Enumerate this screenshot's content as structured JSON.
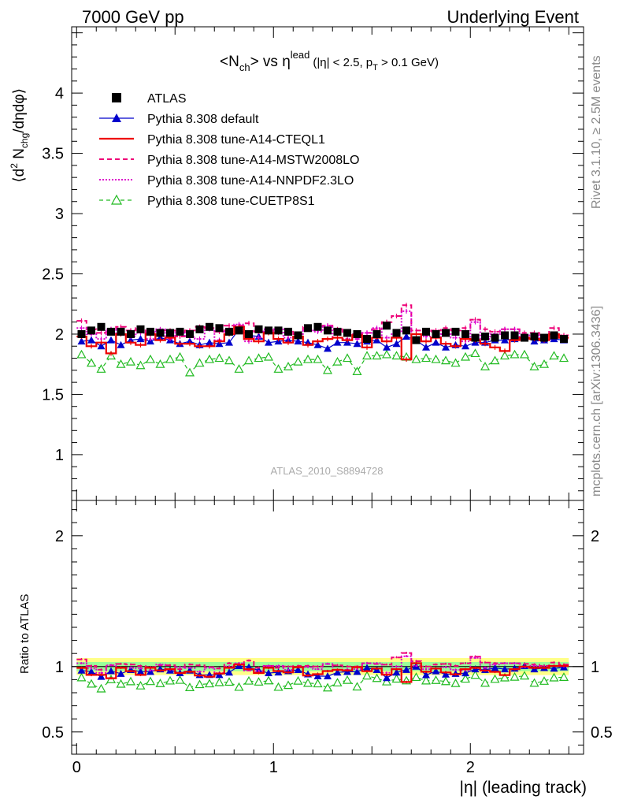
{
  "header": {
    "left": "7000 GeV pp",
    "right": "Underlying Event"
  },
  "side_labels": {
    "rivet": "Rivet 3.1.10, ≥ 2.5M events",
    "mcplots": "mcplots.cern.ch [arXiv:1306.3436]"
  },
  "watermark": "ATLAS_2010_S8894728",
  "colors": {
    "atlas": "#000000",
    "default": "#0000cc",
    "cteql1": "#ee0000",
    "mstw": "#ee0077",
    "nnpdf": "#dd00cc",
    "cuetp": "#22bb22",
    "band_yellow": "#ffff88",
    "band_green": "#99ff99"
  },
  "chart_data": [
    {
      "type": "scatter",
      "panel": "main",
      "title": "<N_ch> vs η^lead (|η| < 2.5, p_T > 0.1 GeV)",
      "title_parts": {
        "lhs_open": "<N",
        "lhs_sub": "ch",
        "lhs_close": "> vs η",
        "lhs_sup": "lead",
        "cut_open": "(|η| < 2.5, p",
        "cut_sub": "T",
        "cut_close": " > 0.1 GeV)"
      },
      "ylabel": "⟨d² N_chg/dηdφ⟩",
      "ylabel_parts": {
        "open": "⟨d",
        "sup": "2",
        "mid": " N",
        "sub": "chg",
        "close": "/dηdφ⟩"
      },
      "xlabel": "|η| (leading track)",
      "xlim": [
        -0.025,
        2.575
      ],
      "ylim": [
        0.62,
        4.55
      ],
      "yticks": [
        1,
        1.5,
        2,
        2.5,
        3,
        3.5,
        4
      ],
      "ytick_labels": [
        "1",
        "1.5",
        "2",
        "2.5",
        "3",
        "3.5",
        "4"
      ],
      "legend_position": "top-left",
      "legend": [
        "ATLAS",
        "Pythia 8.308 default",
        "Pythia 8.308 tune-A14-CTEQL1",
        "Pythia 8.308 tune-A14-MSTW2008LO",
        "Pythia 8.308 tune-A14-NNPDF2.3LO",
        "Pythia 8.308 tune-CUETP8S1"
      ],
      "x": [
        0.025,
        0.075,
        0.125,
        0.175,
        0.225,
        0.275,
        0.325,
        0.375,
        0.425,
        0.475,
        0.525,
        0.575,
        0.625,
        0.675,
        0.725,
        0.775,
        0.825,
        0.875,
        0.925,
        0.975,
        1.025,
        1.075,
        1.125,
        1.175,
        1.225,
        1.275,
        1.325,
        1.375,
        1.425,
        1.475,
        1.525,
        1.575,
        1.625,
        1.675,
        1.725,
        1.775,
        1.825,
        1.875,
        1.925,
        1.975,
        2.025,
        2.075,
        2.125,
        2.175,
        2.225,
        2.275,
        2.325,
        2.375,
        2.425,
        2.475
      ],
      "series": [
        {
          "name": "ATLAS",
          "style": "square",
          "values": [
            2.0,
            2.03,
            2.06,
            2.02,
            2.02,
            2.0,
            2.04,
            2.02,
            2.01,
            2.01,
            2.02,
            2.0,
            2.04,
            2.06,
            2.05,
            2.02,
            2.03,
            2.0,
            2.04,
            2.03,
            2.03,
            2.02,
            1.99,
            2.05,
            2.06,
            2.03,
            2.02,
            2.01,
            2.0,
            1.96,
            2.0,
            2.07,
            2.01,
            2.03,
            1.95,
            2.02,
            2.0,
            2.01,
            2.02,
            2.0,
            1.97,
            1.98,
            1.97,
            1.99,
            1.99,
            1.97,
            1.98,
            1.97,
            1.99,
            1.96
          ]
        },
        {
          "name": "Pythia 8.308 default",
          "style": "line-triangle",
          "values": [
            1.94,
            1.95,
            1.9,
            1.95,
            1.91,
            1.95,
            1.96,
            1.94,
            1.97,
            1.95,
            1.92,
            1.94,
            1.91,
            1.93,
            1.92,
            1.93,
            2.04,
            1.99,
            1.98,
            1.93,
            1.94,
            1.95,
            1.94,
            1.93,
            1.91,
            1.88,
            1.93,
            1.93,
            1.92,
            1.94,
            1.95,
            1.89,
            1.92,
            1.98,
            1.95,
            1.89,
            1.93,
            1.89,
            1.91,
            1.9,
            1.93,
            1.93,
            1.95,
            1.95,
            1.96,
            1.98,
            1.94,
            1.95,
            1.96,
            1.95
          ]
        },
        {
          "name": "Pythia 8.308 tune-A14-CTEQL1",
          "style": "solid",
          "values": [
            1.98,
            1.9,
            1.93,
            1.84,
            2.0,
            1.93,
            1.91,
            2.0,
            1.95,
            1.97,
            1.92,
            1.92,
            1.9,
            1.9,
            1.94,
            2.0,
            2.06,
            1.96,
            1.94,
            2.01,
            1.96,
            1.93,
            1.98,
            1.91,
            1.94,
            1.96,
            1.97,
            1.95,
            1.99,
            1.89,
            1.97,
            1.94,
            1.97,
            1.79,
            2.0,
            1.94,
            1.97,
            1.92,
            1.9,
            1.96,
            1.95,
            1.92,
            1.89,
            1.86,
            1.95,
            1.97,
            1.96,
            1.95,
            2.0,
            1.97
          ]
        },
        {
          "name": "Pythia 8.308 tune-A14-MSTW2008LO",
          "style": "dashed",
          "values": [
            2.11,
            2.04,
            2.01,
            2.04,
            2.06,
            2.03,
            2.05,
            2.01,
            2.03,
            2.03,
            1.98,
            2.03,
            2.06,
            2.05,
            2.02,
            2.07,
            2.07,
            2.09,
            2.02,
            2.04,
            2.01,
            2.02,
            2.0,
            2.06,
            2.06,
            2.07,
            2.04,
            2.01,
            2.0,
            2.01,
            2.04,
            2.1,
            2.15,
            2.24,
            2.03,
            2.02,
            2.03,
            2.05,
            2.03,
            2.05,
            2.12,
            2.04,
            2.02,
            2.04,
            2.04,
            2.01,
            2.01,
            1.98,
            2.05,
            1.99
          ]
        },
        {
          "name": "Pythia 8.308 tune-A14-NNPDF2.3LO",
          "style": "dotted",
          "values": [
            2.05,
            2.0,
            1.96,
            2.04,
            2.0,
            1.98,
            2.01,
            1.96,
            2.04,
            1.96,
            2.01,
            1.98,
            1.96,
            2.04,
            1.95,
            2.02,
            2.08,
            1.94,
            1.97,
            2.04,
            2.04,
            1.97,
            1.98,
            2.04,
            2.02,
            2.07,
            1.97,
            1.96,
            1.96,
            2.01,
            2.05,
            1.97,
            2.01,
            2.19,
            1.96,
            1.98,
            1.97,
            2.0,
            1.97,
            1.94,
            2.1,
            1.96,
            2.0,
            2.04,
            2.04,
            1.96,
            1.99,
            1.95,
            2.0,
            1.96
          ]
        },
        {
          "name": "Pythia 8.308 tune-CUETP8S1",
          "style": "dashed-open-triangle",
          "values": [
            1.83,
            1.76,
            1.71,
            1.82,
            1.75,
            1.77,
            1.74,
            1.79,
            1.75,
            1.79,
            1.81,
            1.68,
            1.76,
            1.79,
            1.8,
            1.78,
            1.71,
            1.78,
            1.8,
            1.81,
            1.71,
            1.73,
            1.77,
            1.79,
            1.79,
            1.7,
            1.77,
            1.8,
            1.69,
            1.82,
            1.82,
            1.83,
            1.82,
            1.81,
            1.79,
            1.8,
            1.79,
            1.78,
            1.76,
            1.81,
            1.84,
            1.73,
            1.78,
            1.82,
            1.83,
            1.83,
            1.73,
            1.75,
            1.82,
            1.8
          ]
        }
      ]
    },
    {
      "type": "scatter",
      "panel": "ratio",
      "ylabel": "Ratio to ATLAS",
      "xlabel": "|η| (leading track)",
      "xlim": [
        -0.025,
        2.575
      ],
      "ylim": [
        0.33,
        2.27
      ],
      "yticks": [
        0.5,
        1,
        2
      ],
      "ytick_labels": [
        "0.5",
        "1",
        "2"
      ],
      "xticks": [
        0,
        1,
        2
      ],
      "xtick_labels": [
        "0",
        "1",
        "2"
      ],
      "reference_line": 1,
      "band_yellow_halfwidth": 0.065,
      "band_green_halfwidth": 0.035
    }
  ]
}
